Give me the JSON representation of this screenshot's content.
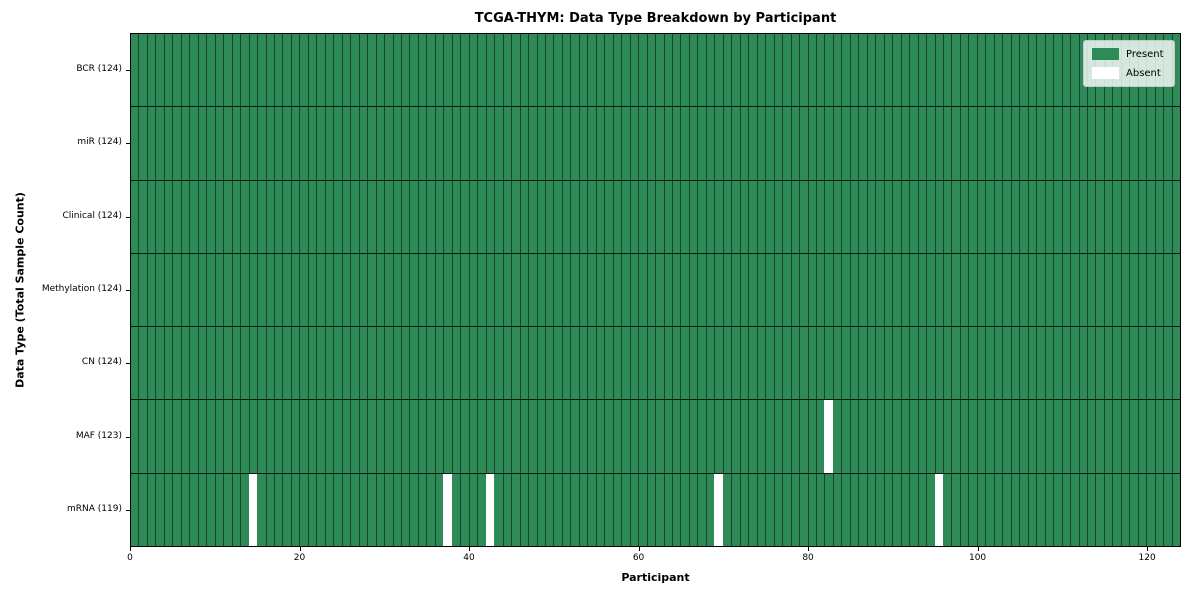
{
  "chart_data": {
    "type": "heatmap",
    "title": "TCGA-THYM: Data Type Breakdown by Participant",
    "xlabel": "Participant",
    "ylabel": "Data Type (Total Sample Count)",
    "xlim": [
      0,
      124
    ],
    "x_ticks": [
      0,
      20,
      40,
      60,
      80,
      100,
      120
    ],
    "n_participants": 124,
    "grid": false,
    "legend_position": "upper right",
    "colors": {
      "present": "#2E8B57",
      "absent": "#FFFFFF"
    },
    "legend": [
      {
        "label": "Present",
        "color": "#2E8B57"
      },
      {
        "label": "Absent",
        "color": "#FFFFFF"
      }
    ],
    "rows": [
      {
        "label": "BCR (124)",
        "data_type": "BCR",
        "present_count": 124,
        "absent_participants": []
      },
      {
        "label": "miR (124)",
        "data_type": "miR",
        "present_count": 124,
        "absent_participants": []
      },
      {
        "label": "Clinical (124)",
        "data_type": "Clinical",
        "present_count": 124,
        "absent_participants": []
      },
      {
        "label": "Methylation (124)",
        "data_type": "Methylation",
        "present_count": 124,
        "absent_participants": []
      },
      {
        "label": "CN (124)",
        "data_type": "CN",
        "present_count": 124,
        "absent_participants": []
      },
      {
        "label": "MAF (123)",
        "data_type": "MAF",
        "present_count": 123,
        "absent_participants": [
          82
        ]
      },
      {
        "label": "mRNA (119)",
        "data_type": "mRNA",
        "present_count": 119,
        "absent_participants": [
          14,
          37,
          42,
          69,
          95
        ]
      }
    ]
  }
}
